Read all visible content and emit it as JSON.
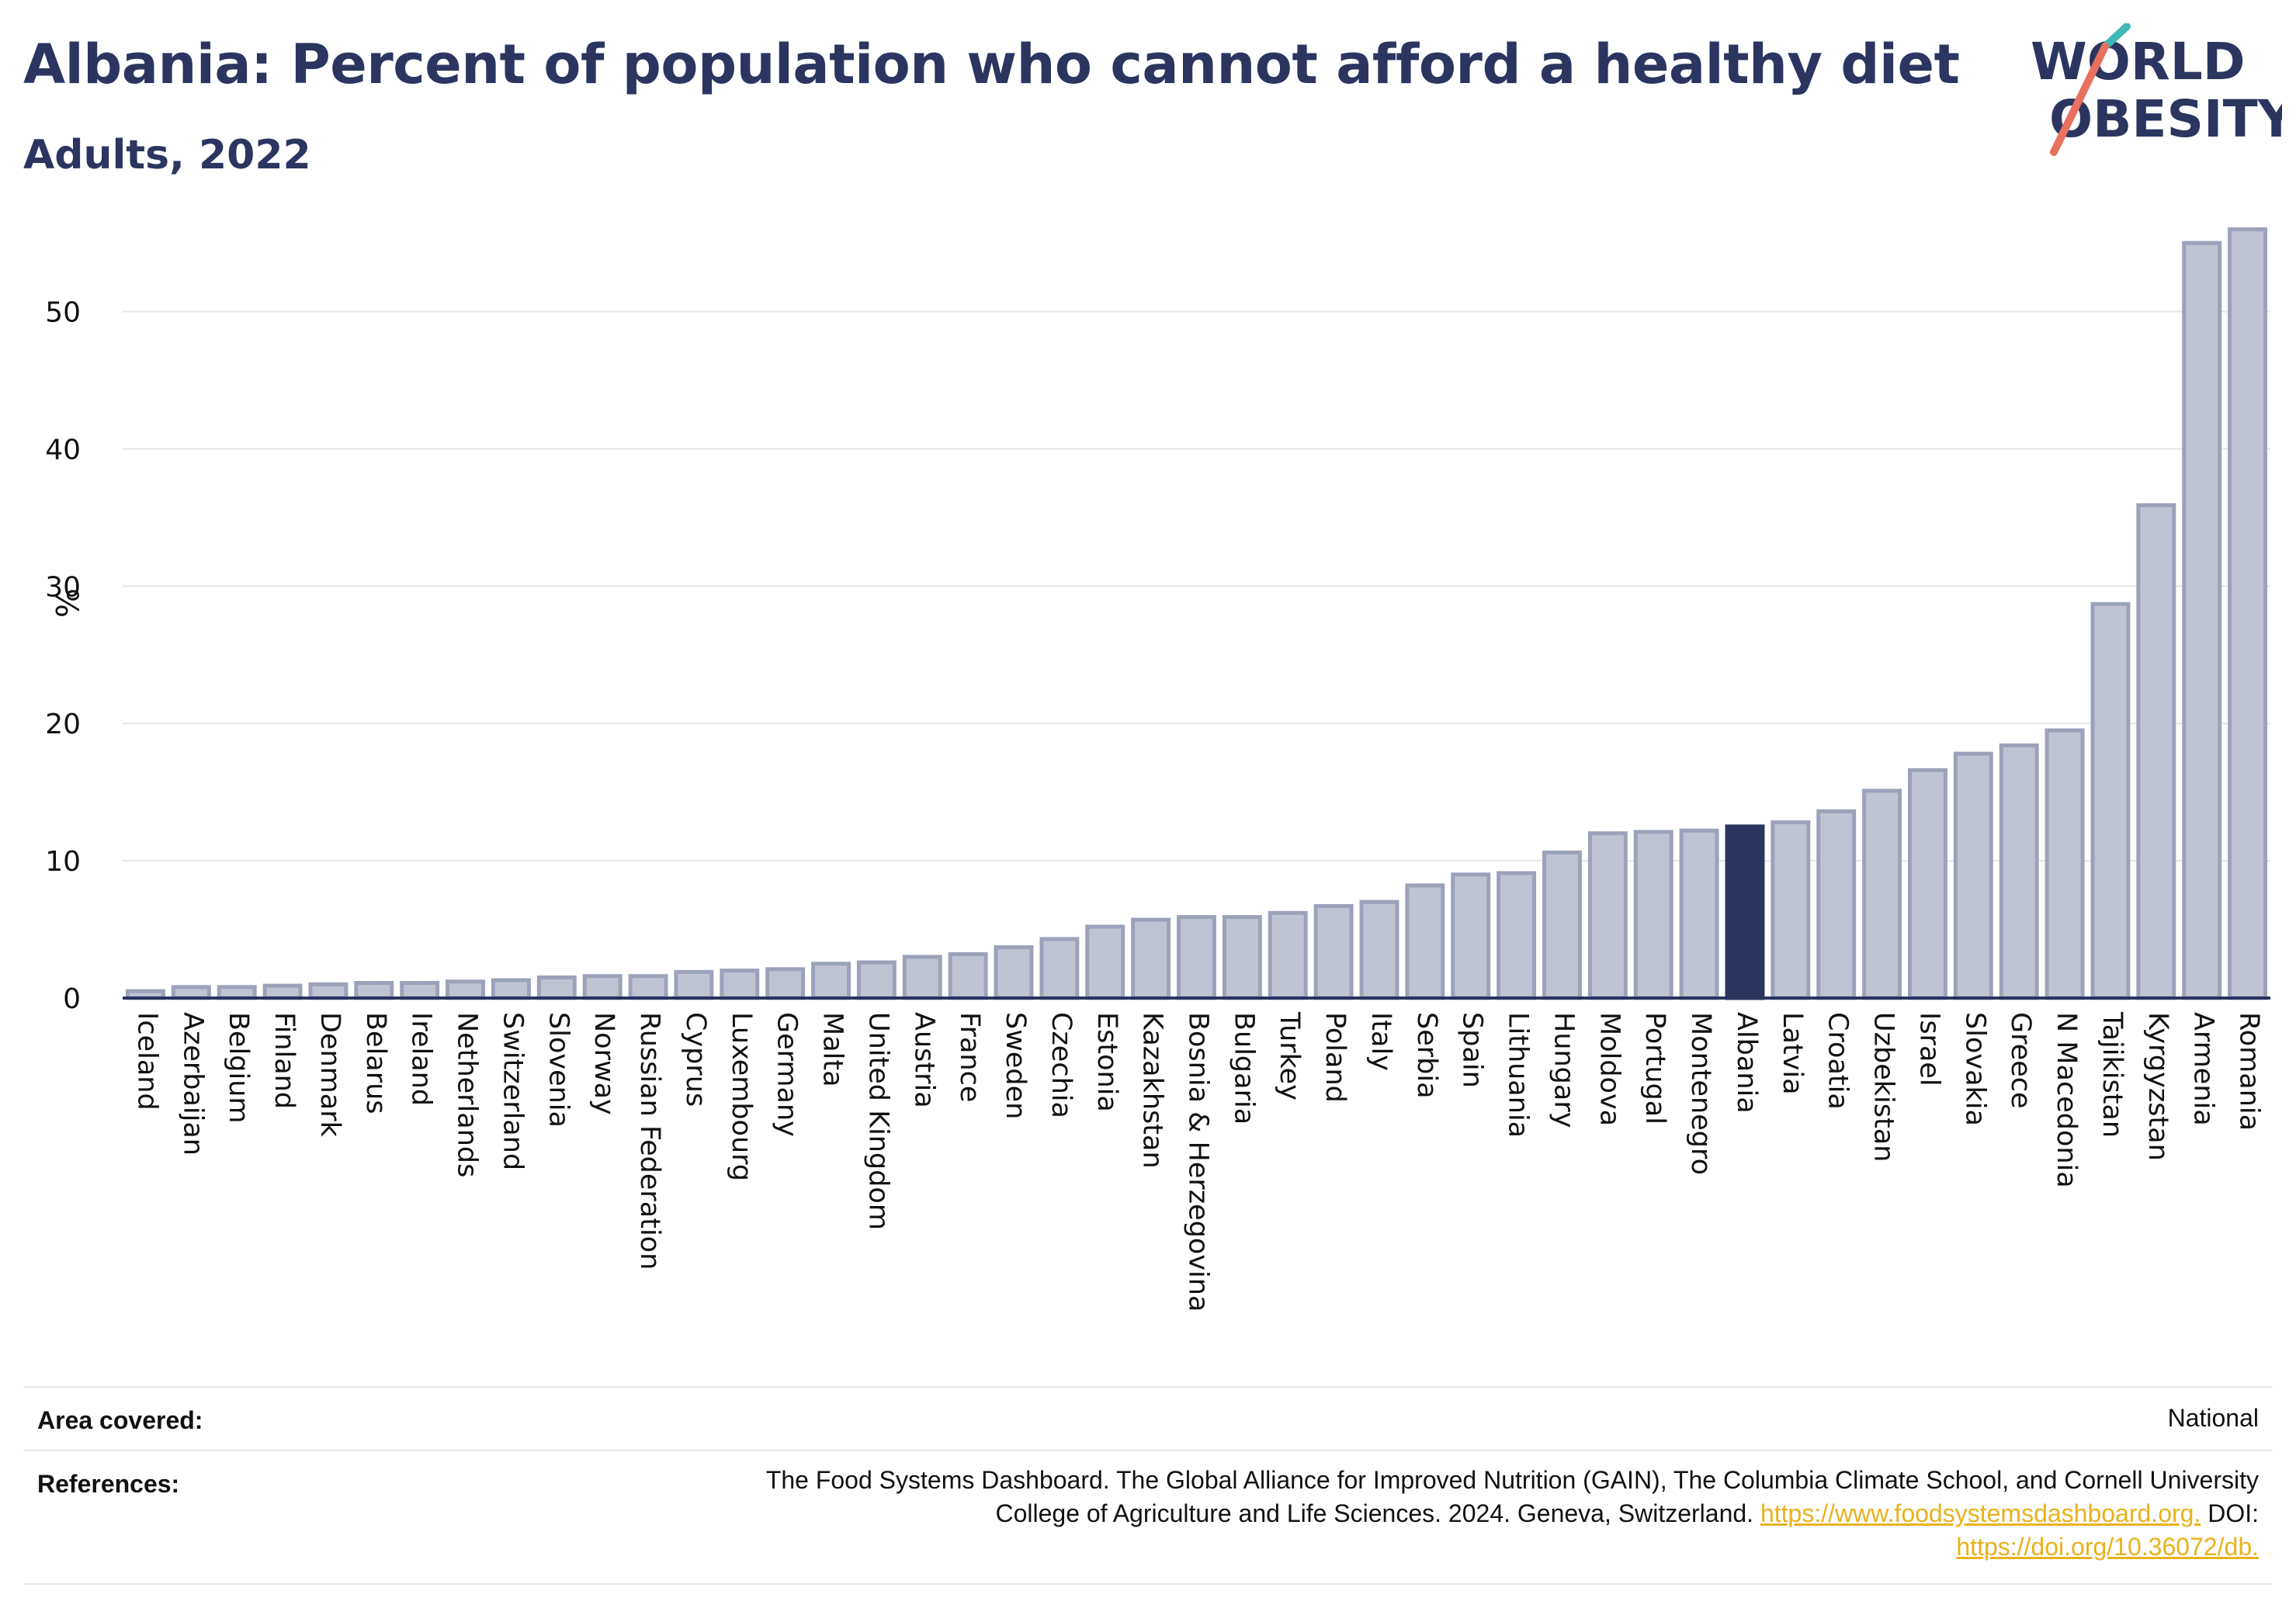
{
  "header": {
    "title": "Albania: Percent of population who cannot afford a healthy diet",
    "subtitle": "Adults, 2022"
  },
  "logo": {
    "line1": "WORLD",
    "line2": "OBESITY"
  },
  "chart_data": {
    "type": "bar",
    "ylabel": "%",
    "ylim": [
      0,
      58
    ],
    "yticks": [
      0,
      10,
      20,
      30,
      40,
      50
    ],
    "grid": true,
    "highlight": "Albania",
    "colors": {
      "bar": "#c0c4d2",
      "bar_outline": "#9ba2b9",
      "highlight": "#2b3560",
      "grid": "#e6e6e6",
      "axis": "#2b3560"
    },
    "categories": [
      "Iceland",
      "Azerbaijan",
      "Belgium",
      "Finland",
      "Denmark",
      "Belarus",
      "Ireland",
      "Netherlands",
      "Switzerland",
      "Slovenia",
      "Norway",
      "Russian Federation",
      "Cyprus",
      "Luxembourg",
      "Germany",
      "Malta",
      "United Kingdom",
      "Austria",
      "France",
      "Sweden",
      "Czechia",
      "Estonia",
      "Kazakhstan",
      "Bosnia & Herzegovina",
      "Bulgaria",
      "Turkey",
      "Poland",
      "Italy",
      "Serbia",
      "Spain",
      "Lithuania",
      "Hungary",
      "Moldova",
      "Portugal",
      "Montenegro",
      "Albania",
      "Latvia",
      "Croatia",
      "Uzbekistan",
      "Israel",
      "Slovakia",
      "Greece",
      "N Macedonia",
      "Tajikistan",
      "Kyrgyzstan",
      "Armenia",
      "Romania"
    ],
    "values": [
      0.5,
      0.8,
      0.8,
      0.9,
      1.0,
      1.1,
      1.1,
      1.2,
      1.3,
      1.5,
      1.6,
      1.6,
      1.9,
      2.0,
      2.1,
      2.5,
      2.6,
      3.0,
      3.2,
      3.7,
      4.3,
      5.2,
      5.7,
      5.9,
      5.9,
      6.2,
      6.7,
      7.0,
      8.2,
      9.0,
      9.1,
      10.6,
      12.0,
      12.1,
      12.2,
      12.5,
      12.8,
      13.6,
      15.1,
      16.6,
      17.8,
      18.4,
      19.5,
      28.7,
      35.9,
      55.0,
      56.0
    ]
  },
  "footer": {
    "area_label": "Area covered:",
    "area_value": "National",
    "ref_label": "References:",
    "ref_line1": "The Food Systems Dashboard. The Global Alliance for Improved Nutrition (GAIN), The Columbia Climate School, and Cornell University",
    "ref_line2_text": "College of Agriculture and Life Sciences. 2024. Geneva, Switzerland. ",
    "ref_line2_link": "https://www.foodsystemsdashboard.org.",
    "ref_line2_tail": " DOI:",
    "ref_line3_link": "https://doi.org/10.36072/db."
  }
}
